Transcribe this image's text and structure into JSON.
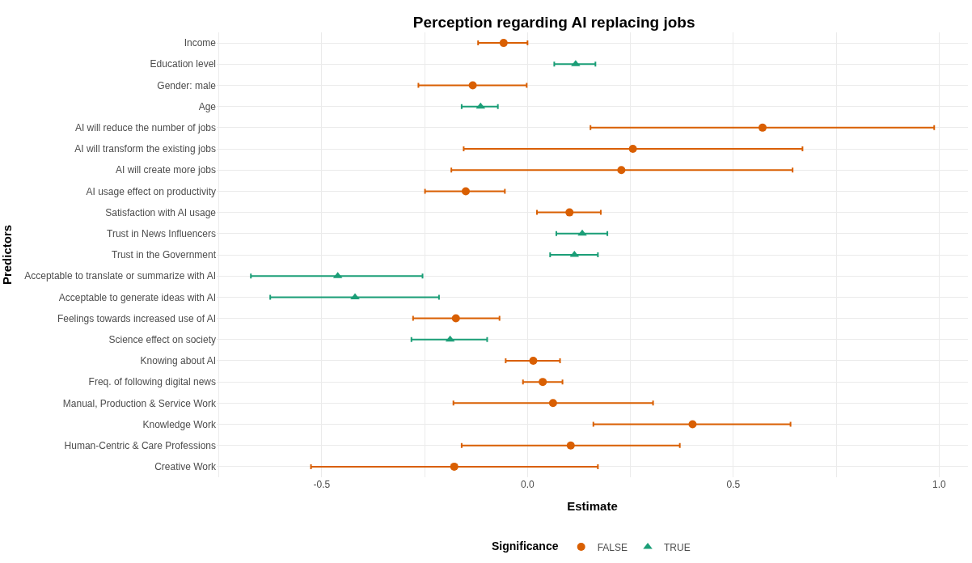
{
  "chart_data": {
    "type": "scatter",
    "orientation": "horizontal",
    "title": "Perception regarding AI replacing jobs",
    "xlabel": "Estimate",
    "ylabel": "Predictors",
    "legend_title": "Significance",
    "legend": "bottom",
    "grid": true,
    "categories": [
      "Income",
      "Education level",
      "Gender: male",
      "Age",
      "AI will reduce the number of jobs",
      "AI will transform the existing jobs",
      "AI will create more jobs",
      "AI usage effect on productivity",
      "Satisfaction with AI usage",
      "Trust in News Influencers",
      "Trust in the Government",
      "Acceptable to translate or summarize with AI",
      "Acceptable to generate ideas with AI",
      "Feelings towards increased use of AI",
      "Science effect on society",
      "Knowing about AI",
      "Freq. of following digital news",
      "Manual, Production & Service Work",
      "Knowledge Work",
      "Human-Centric & Care Professions",
      "Creative Work"
    ],
    "xlim": [
      -0.755,
      1.07
    ],
    "xticks": [
      {
        "value": -0.75,
        "label": null
      },
      {
        "value": -0.5,
        "label": "-0.5"
      },
      {
        "value": -0.25,
        "label": null
      },
      {
        "value": 0,
        "label": "0.0"
      },
      {
        "value": 0.25,
        "label": null
      },
      {
        "value": 0.5,
        "label": "0.5"
      },
      {
        "value": 0.75,
        "label": null
      },
      {
        "value": 1,
        "label": "1.0"
      }
    ],
    "series": [
      {
        "name": "FALSE",
        "color": "#d95f02",
        "marker": "circle",
        "values": [
          -0.058,
          null,
          -0.133,
          null,
          0.571,
          0.256,
          0.228,
          -0.15,
          0.102,
          null,
          null,
          null,
          null,
          -0.174,
          null,
          0.014,
          0.037,
          0.062,
          0.401,
          0.105,
          -0.178
        ],
        "errors": [
          [
            -0.12,
            0.0
          ],
          null,
          [
            -0.265,
            -0.002
          ],
          null,
          [
            0.153,
            0.988
          ],
          [
            -0.155,
            0.668
          ],
          [
            -0.185,
            0.644
          ],
          [
            -0.249,
            -0.055
          ],
          [
            0.023,
            0.178
          ],
          null,
          null,
          null,
          null,
          [
            -0.278,
            -0.068
          ],
          null,
          [
            -0.053,
            0.079
          ],
          [
            -0.011,
            0.085
          ],
          [
            -0.18,
            0.305
          ],
          [
            0.16,
            0.639
          ],
          [
            -0.16,
            0.37
          ],
          [
            -0.526,
            0.171
          ]
        ]
      },
      {
        "name": "TRUE",
        "color": "#1b9e77",
        "marker": "triangle",
        "values": [
          null,
          0.117,
          null,
          -0.114,
          null,
          null,
          null,
          null,
          null,
          0.133,
          0.114,
          -0.461,
          -0.419,
          null,
          -0.188,
          null,
          null,
          null,
          null,
          null,
          null
        ],
        "errors": [
          null,
          [
            0.065,
            0.165
          ],
          null,
          [
            -0.16,
            -0.072
          ],
          null,
          null,
          null,
          null,
          null,
          [
            0.07,
            0.194
          ],
          [
            0.055,
            0.171
          ],
          [
            -0.672,
            -0.255
          ],
          [
            -0.625,
            -0.215
          ],
          null,
          [
            -0.282,
            -0.098
          ],
          null,
          null,
          null,
          null,
          null,
          null
        ]
      }
    ]
  }
}
